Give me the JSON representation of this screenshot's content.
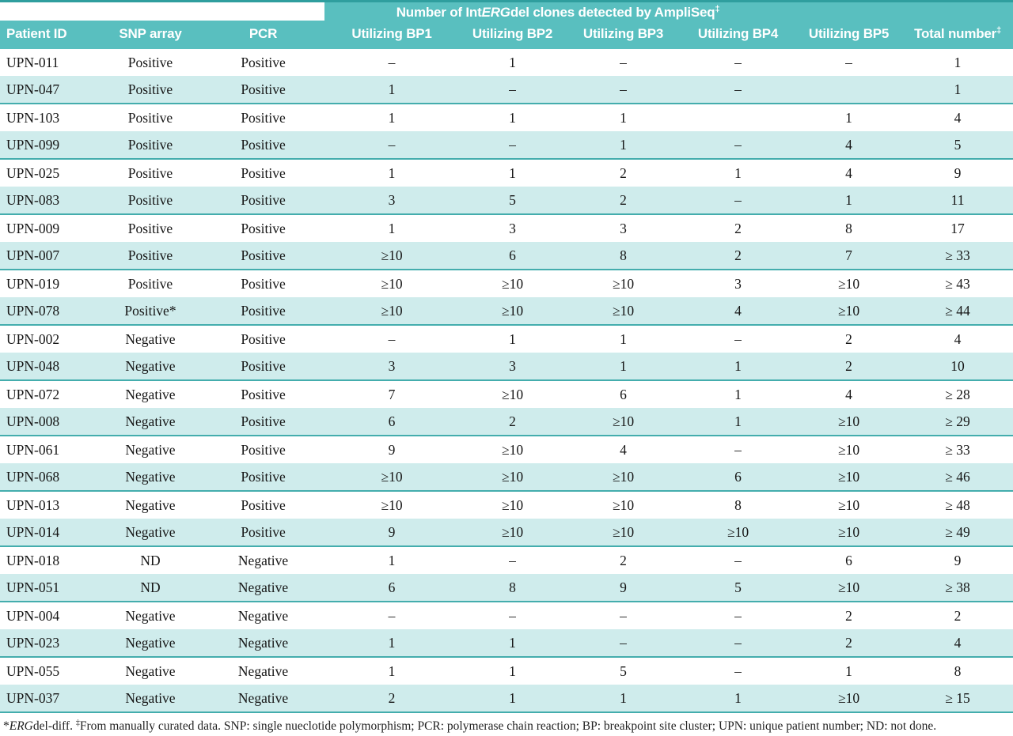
{
  "table": {
    "top_title": {
      "prefix": "Number of Int",
      "gene": "ERG",
      "suffix": "del clones detected by AmpliSeq",
      "sup": "‡"
    },
    "headers": [
      {
        "label": "Patient ID",
        "sup": ""
      },
      {
        "label": "SNP array",
        "sup": ""
      },
      {
        "label": "PCR",
        "sup": ""
      },
      {
        "label": "Utilizing BP1",
        "sup": ""
      },
      {
        "label": "Utilizing BP2",
        "sup": ""
      },
      {
        "label": "Utilizing BP3",
        "sup": ""
      },
      {
        "label": "Utilizing BP4",
        "sup": ""
      },
      {
        "label": "Utilizing BP5",
        "sup": ""
      },
      {
        "label": "Total number",
        "sup": "‡"
      }
    ],
    "rows": [
      [
        "UPN-011",
        "Positive",
        "Positive",
        "–",
        "1",
        "–",
        "–",
        "–",
        "1"
      ],
      [
        "UPN-047",
        "Positive",
        "Positive",
        "1",
        "–",
        "–",
        "–",
        "",
        "1"
      ],
      [
        "UPN-103",
        "Positive",
        "Positive",
        "1",
        "1",
        "1",
        "",
        "1",
        "4"
      ],
      [
        "UPN-099",
        "Positive",
        "Positive",
        "–",
        "–",
        "1",
        "–",
        "4",
        "5"
      ],
      [
        "UPN-025",
        "Positive",
        "Positive",
        "1",
        "1",
        "2",
        "1",
        "4",
        "9"
      ],
      [
        "UPN-083",
        "Positive",
        "Positive",
        "3",
        "5",
        "2",
        "–",
        "1",
        "11"
      ],
      [
        "UPN-009",
        "Positive",
        "Positive",
        "1",
        "3",
        "3",
        "2",
        "8",
        "17"
      ],
      [
        "UPN-007",
        "Positive",
        "Positive",
        "≥10",
        "6",
        "8",
        "2",
        "7",
        "≥ 33"
      ],
      [
        "UPN-019",
        "Positive",
        "Positive",
        "≥10",
        "≥10",
        "≥10",
        "3",
        "≥10",
        "≥ 43"
      ],
      [
        "UPN-078",
        "Positive*",
        "Positive",
        "≥10",
        "≥10",
        "≥10",
        "4",
        "≥10",
        "≥ 44"
      ],
      [
        "UPN-002",
        "Negative",
        "Positive",
        "–",
        "1",
        "1",
        "–",
        "2",
        "4"
      ],
      [
        "UPN-048",
        "Negative",
        "Positive",
        "3",
        "3",
        "1",
        "1",
        "2",
        "10"
      ],
      [
        "UPN-072",
        "Negative",
        "Positive",
        "7",
        "≥10",
        "6",
        "1",
        "4",
        "≥ 28"
      ],
      [
        "UPN-008",
        "Negative",
        "Positive",
        "6",
        "2",
        "≥10",
        "1",
        "≥10",
        "≥ 29"
      ],
      [
        "UPN-061",
        "Negative",
        "Positive",
        "9",
        "≥10",
        "4",
        "–",
        "≥10",
        "≥ 33"
      ],
      [
        "UPN-068",
        "Negative",
        "Positive",
        "≥10",
        "≥10",
        "≥10",
        "6",
        "≥10",
        "≥ 46"
      ],
      [
        "UPN-013",
        "Negative",
        "Positive",
        "≥10",
        "≥10",
        "≥10",
        "8",
        "≥10",
        "≥ 48"
      ],
      [
        "UPN-014",
        "Negative",
        "Positive",
        "9",
        "≥10",
        "≥10",
        "≥10",
        "≥10",
        "≥ 49"
      ],
      [
        "UPN-018",
        "ND",
        "Negative",
        "1",
        "–",
        "2",
        "–",
        "6",
        "9"
      ],
      [
        "UPN-051",
        "ND",
        "Negative",
        "6",
        "8",
        "9",
        "5",
        "≥10",
        "≥ 38"
      ],
      [
        "UPN-004",
        "Negative",
        "Negative",
        "–",
        "–",
        "–",
        "–",
        "2",
        "2"
      ],
      [
        "UPN-023",
        "Negative",
        "Negative",
        "1",
        "1",
        "–",
        "–",
        "2",
        "4"
      ],
      [
        "UPN-055",
        "Negative",
        "Negative",
        "1",
        "1",
        "5",
        "–",
        "1",
        "8"
      ],
      [
        "UPN-037",
        "Negative",
        "Negative",
        "2",
        "1",
        "1",
        "1",
        "≥10",
        "≥ 15"
      ]
    ]
  },
  "footnote": {
    "star": "*",
    "gene": "ERG",
    "after_gene": "del-diff. ",
    "dagger": "‡",
    "rest": "From manually curated data. SNP: single nueclotide polymorphism; PCR: polymerase chain reaction; BP: breakpoint site cluster; UPN: unique patient number; ND: not done."
  },
  "colors": {
    "header_teal": "#59bfbf",
    "row_stripe_teal": "#cfecec",
    "rule_teal": "#44adad",
    "top_rule_teal": "#2f9e9e"
  }
}
